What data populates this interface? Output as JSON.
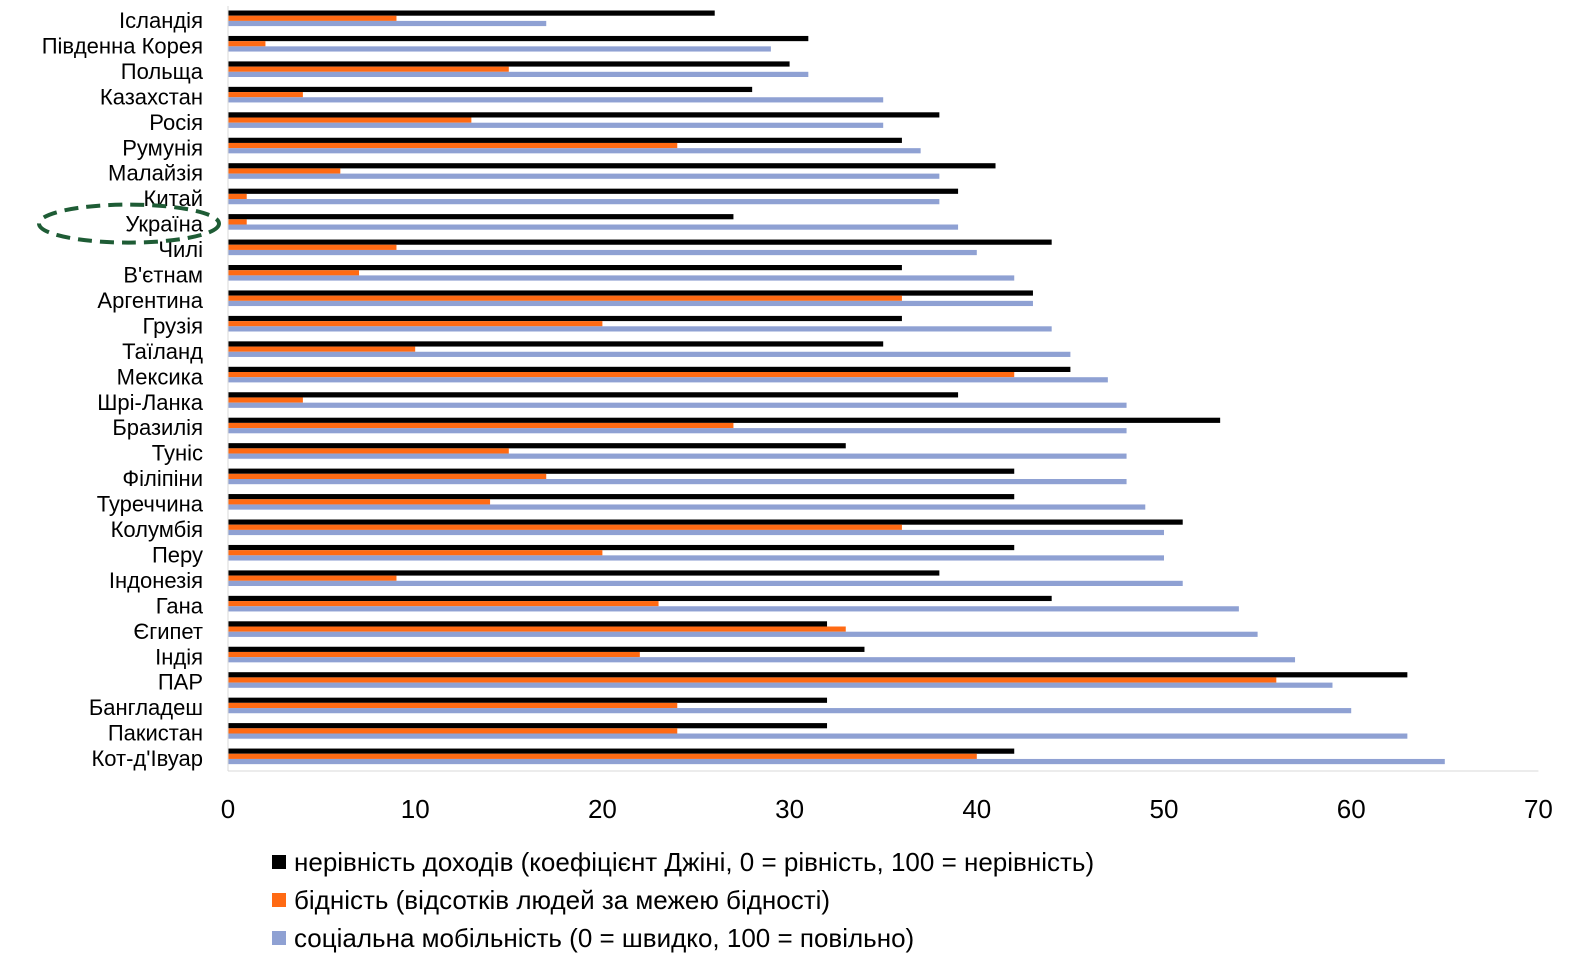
{
  "chart_data": {
    "type": "bar",
    "orientation": "horizontal",
    "categories": [
      "Ісландія",
      "Південна Корея",
      "Польща",
      "Казахстан",
      "Росія",
      "Румунія",
      "Малайзія",
      "Китай",
      "Україна",
      "Чилі",
      "В'єтнам",
      "Аргентина",
      "Грузія",
      "Таїланд",
      "Мексика",
      "Шрі-Ланка",
      "Бразилія",
      "Туніс",
      "Філіпіни",
      "Туреччина",
      "Колумбія",
      "Перу",
      "Індонезія",
      "Гана",
      "Єгипет",
      "Індія",
      "ПАР",
      "Бангладеш",
      "Пакистан",
      "Кот-д'Івуар"
    ],
    "series": [
      {
        "name": "нерівність доходів (коефіцієнт Джіні, 0 = рівність, 100 = нерівність)",
        "color": "#000000",
        "values": [
          26,
          31,
          30,
          28,
          38,
          36,
          41,
          39,
          27,
          44,
          36,
          43,
          36,
          35,
          45,
          39,
          53,
          33,
          42,
          42,
          51,
          42,
          38,
          44,
          32,
          34,
          63,
          32,
          32,
          42
        ]
      },
      {
        "name": "бідність (відсотків людей за межею бідності)",
        "color": "#ff6a13",
        "values": [
          9,
          2,
          15,
          4,
          13,
          24,
          6,
          1,
          1,
          9,
          7,
          36,
          20,
          10,
          42,
          4,
          27,
          15,
          17,
          14,
          36,
          20,
          9,
          23,
          33,
          22,
          56,
          24,
          24,
          40
        ]
      },
      {
        "name": "соціальна мобільність (0 = швидко, 100 = повільно)",
        "color": "#8fa1d3",
        "values": [
          17,
          29,
          31,
          35,
          35,
          37,
          38,
          38,
          39,
          40,
          42,
          43,
          44,
          45,
          47,
          48,
          48,
          48,
          48,
          49,
          50,
          50,
          51,
          54,
          55,
          57,
          59,
          60,
          63,
          65
        ]
      }
    ],
    "xlim": [
      0,
      70
    ],
    "xticks": [
      "0",
      "10",
      "20",
      "30",
      "40",
      "50",
      "60",
      "70"
    ],
    "grid": false,
    "legend_position": "bottom",
    "highlight": {
      "category": "Україна",
      "style": "dashed ellipse",
      "color": "#1e5c35"
    }
  }
}
